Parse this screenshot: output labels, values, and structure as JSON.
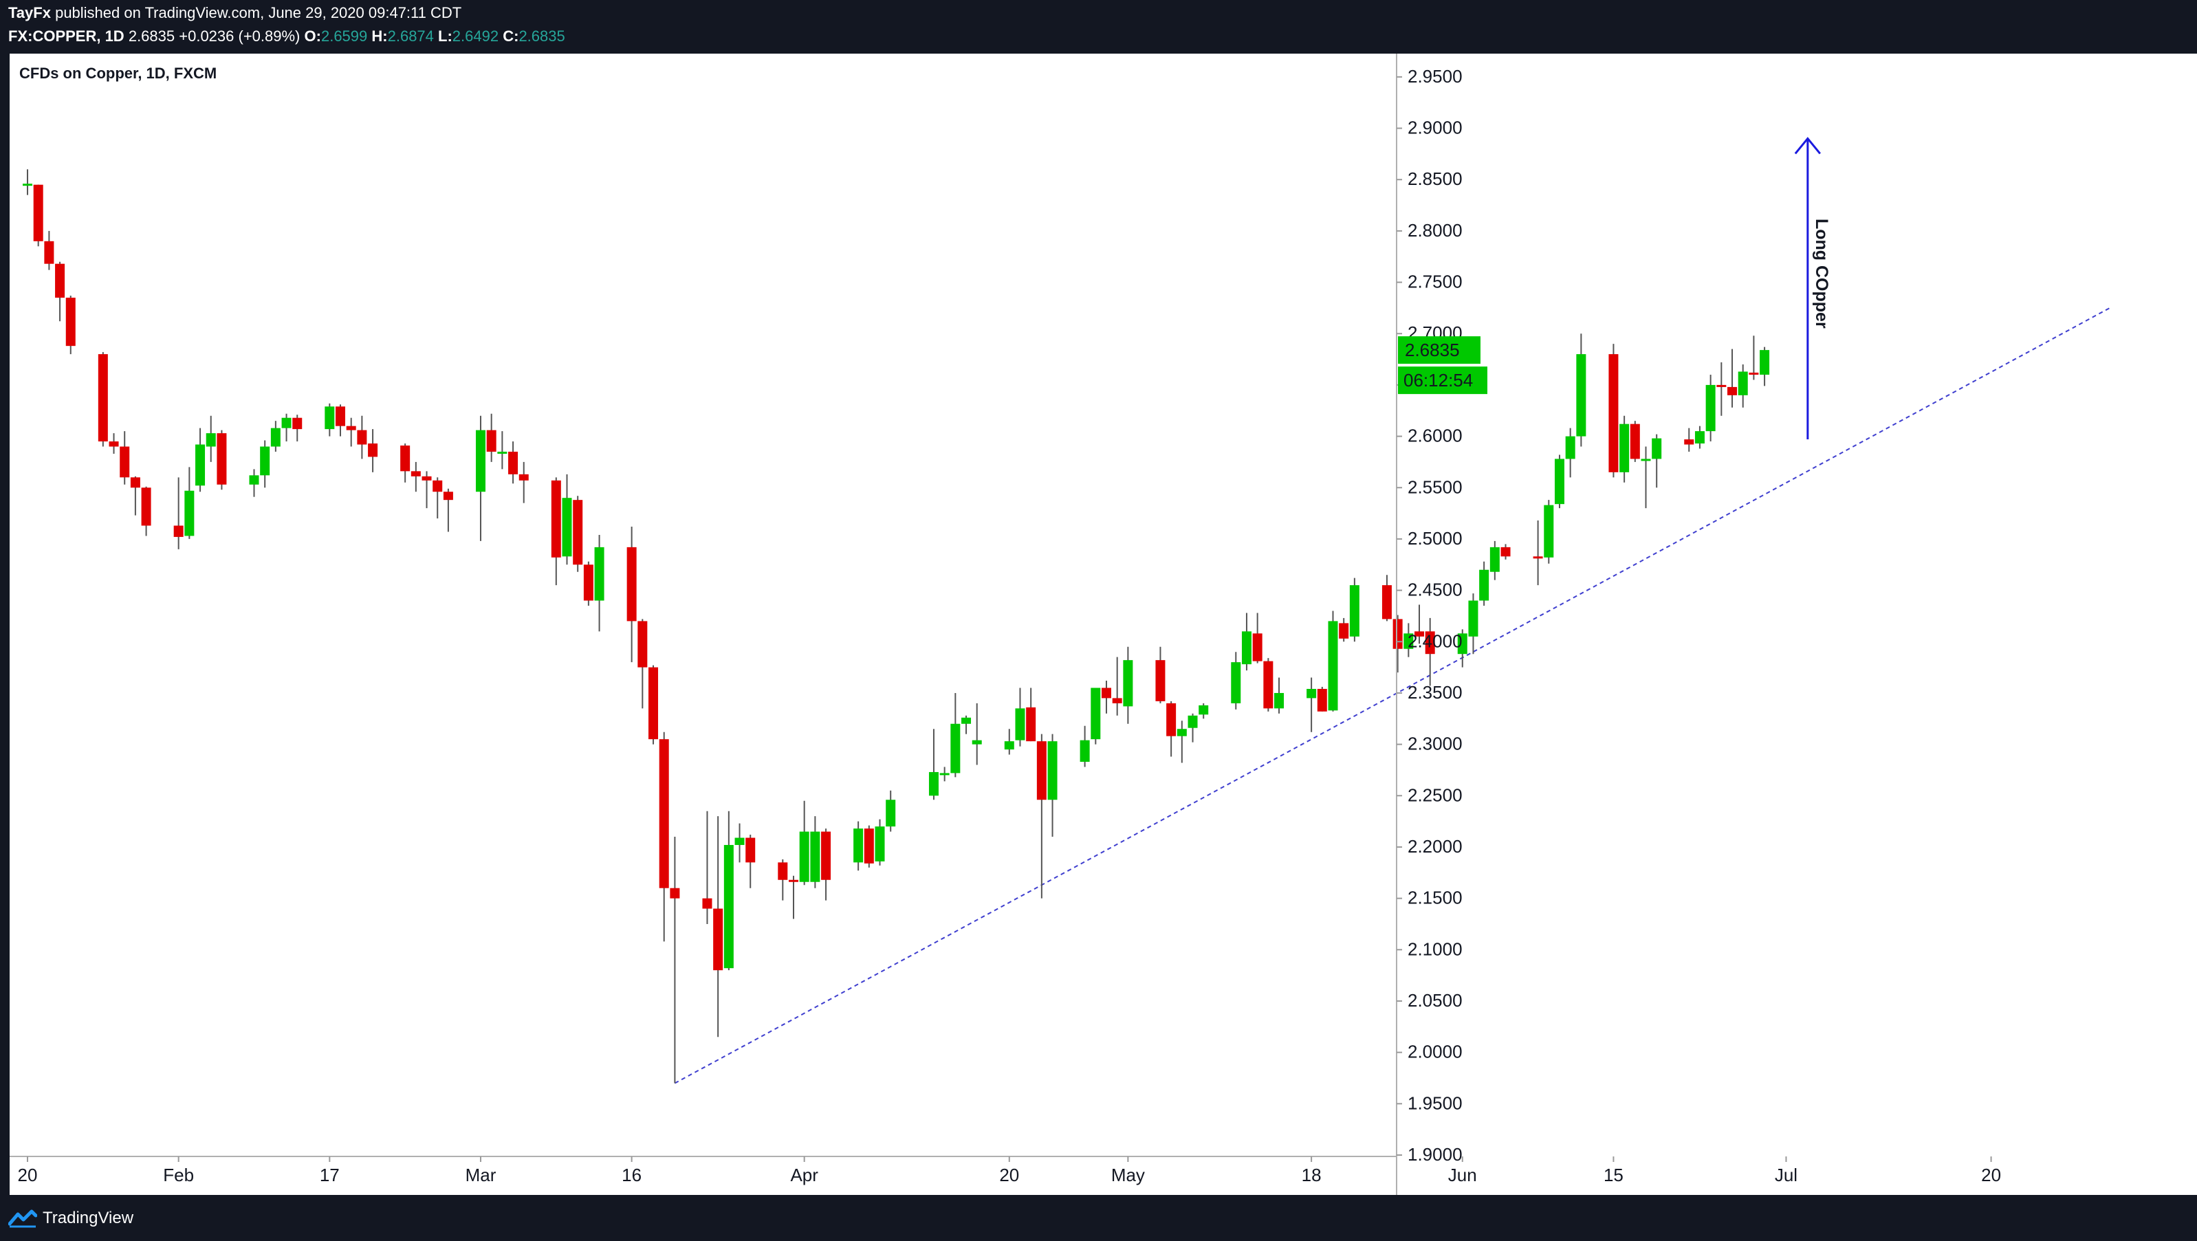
{
  "header": {
    "line1_user": "TayFx",
    "line1_rest": "published on TradingView.com, June 29, 2020 09:47:11 CDT",
    "symbol": "FX:COPPER, 1D",
    "last": "2.6835",
    "change": "+0.0236 (+0.89%)",
    "o_label": "O:",
    "o_value": "2.6599",
    "h_label": "H:",
    "h_value": "2.6874",
    "l_label": "L:",
    "l_value": "2.6492",
    "c_label": "C:",
    "c_value": "2.6835"
  },
  "footer": {
    "brand": "TradingView"
  },
  "colors": {
    "up": "#00c800",
    "down": "#e00000",
    "wick": "#555555",
    "trendline": "#3f3fcf",
    "arrow": "#1a1adf",
    "price_badge": "#00c800",
    "background": "#ffffff",
    "chrome": "#131722"
  },
  "chart_data": {
    "type": "candlestick",
    "title": "CFDs on Copper, 1D, FXCM",
    "ylim": [
      1.9,
      2.97
    ],
    "yticks": [
      "2.9500",
      "2.9000",
      "2.8500",
      "2.8000",
      "2.7500",
      "2.7000",
      "2.6500",
      "2.6000",
      "2.5500",
      "2.5000",
      "2.4500",
      "2.4000",
      "2.3500",
      "2.3000",
      "2.2500",
      "2.2000",
      "2.1500",
      "2.1000",
      "2.0500",
      "2.0000",
      "1.9500",
      "1.9000"
    ],
    "xticks": [
      {
        "label": "20",
        "date": "2020-01-20"
      },
      {
        "label": "Feb",
        "date": "2020-02-03"
      },
      {
        "label": "17",
        "date": "2020-02-17"
      },
      {
        "label": "Mar",
        "date": "2020-03-02"
      },
      {
        "label": "16",
        "date": "2020-03-16"
      },
      {
        "label": "Apr",
        "date": "2020-04-01"
      },
      {
        "label": "20",
        "date": "2020-04-20"
      },
      {
        "label": "May",
        "date": "2020-05-01"
      },
      {
        "label": "18",
        "date": "2020-05-18"
      },
      {
        "label": "Jun",
        "date": "2020-06-01"
      },
      {
        "label": "15",
        "date": "2020-06-15"
      },
      {
        "label": "Jul",
        "date": "2020-07-01"
      },
      {
        "label": "20",
        "date": "2020-07-20"
      }
    ],
    "candles": [
      {
        "date": "2020-01-20",
        "open": 2.846,
        "high": 2.86,
        "low": 2.835,
        "close": 2.846
      },
      {
        "date": "2020-01-21",
        "open": 2.845,
        "high": 2.845,
        "low": 2.785,
        "close": 2.79
      },
      {
        "date": "2020-01-22",
        "open": 2.79,
        "high": 2.8,
        "low": 2.762,
        "close": 2.768
      },
      {
        "date": "2020-01-23",
        "open": 2.768,
        "high": 2.77,
        "low": 2.712,
        "close": 2.735
      },
      {
        "date": "2020-01-24",
        "open": 2.735,
        "high": 2.737,
        "low": 2.68,
        "close": 2.688
      },
      {
        "date": "2020-01-27",
        "open": 2.68,
        "high": 2.682,
        "low": 2.59,
        "close": 2.595
      },
      {
        "date": "2020-01-28",
        "open": 2.595,
        "high": 2.603,
        "low": 2.583,
        "close": 2.59
      },
      {
        "date": "2020-01-29",
        "open": 2.59,
        "high": 2.605,
        "low": 2.553,
        "close": 2.56
      },
      {
        "date": "2020-01-30",
        "open": 2.56,
        "high": 2.561,
        "low": 2.523,
        "close": 2.55
      },
      {
        "date": "2020-01-31",
        "open": 2.55,
        "high": 2.551,
        "low": 2.503,
        "close": 2.513
      },
      {
        "date": "2020-02-03",
        "open": 2.513,
        "high": 2.56,
        "low": 2.49,
        "close": 2.502
      },
      {
        "date": "2020-02-04",
        "open": 2.503,
        "high": 2.57,
        "low": 2.5,
        "close": 2.547
      },
      {
        "date": "2020-02-05",
        "open": 2.552,
        "high": 2.608,
        "low": 2.546,
        "close": 2.592
      },
      {
        "date": "2020-02-06",
        "open": 2.59,
        "high": 2.62,
        "low": 2.575,
        "close": 2.603
      },
      {
        "date": "2020-02-07",
        "open": 2.603,
        "high": 2.606,
        "low": 2.548,
        "close": 2.553
      },
      {
        "date": "2020-02-10",
        "open": 2.553,
        "high": 2.568,
        "low": 2.541,
        "close": 2.562
      },
      {
        "date": "2020-02-11",
        "open": 2.562,
        "high": 2.596,
        "low": 2.55,
        "close": 2.59
      },
      {
        "date": "2020-02-12",
        "open": 2.59,
        "high": 2.615,
        "low": 2.585,
        "close": 2.608
      },
      {
        "date": "2020-02-13",
        "open": 2.608,
        "high": 2.622,
        "low": 2.595,
        "close": 2.618
      },
      {
        "date": "2020-02-14",
        "open": 2.618,
        "high": 2.621,
        "low": 2.595,
        "close": 2.607
      },
      {
        "date": "2020-02-17",
        "open": 2.607,
        "high": 2.632,
        "low": 2.6,
        "close": 2.629
      },
      {
        "date": "2020-02-18",
        "open": 2.629,
        "high": 2.631,
        "low": 2.6,
        "close": 2.61
      },
      {
        "date": "2020-02-19",
        "open": 2.61,
        "high": 2.618,
        "low": 2.59,
        "close": 2.606
      },
      {
        "date": "2020-02-20",
        "open": 2.606,
        "high": 2.62,
        "low": 2.578,
        "close": 2.592
      },
      {
        "date": "2020-02-21",
        "open": 2.593,
        "high": 2.607,
        "low": 2.565,
        "close": 2.58
      },
      {
        "date": "2020-02-24",
        "open": 2.591,
        "high": 2.593,
        "low": 2.555,
        "close": 2.566
      },
      {
        "date": "2020-02-25",
        "open": 2.566,
        "high": 2.575,
        "low": 2.546,
        "close": 2.561
      },
      {
        "date": "2020-02-26",
        "open": 2.561,
        "high": 2.566,
        "low": 2.53,
        "close": 2.557
      },
      {
        "date": "2020-02-27",
        "open": 2.557,
        "high": 2.56,
        "low": 2.52,
        "close": 2.546
      },
      {
        "date": "2020-02-28",
        "open": 2.546,
        "high": 2.549,
        "low": 2.507,
        "close": 2.538
      },
      {
        "date": "2020-03-02",
        "open": 2.546,
        "high": 2.62,
        "low": 2.498,
        "close": 2.606
      },
      {
        "date": "2020-03-03",
        "open": 2.606,
        "high": 2.622,
        "low": 2.575,
        "close": 2.585
      },
      {
        "date": "2020-03-04",
        "open": 2.585,
        "high": 2.605,
        "low": 2.568,
        "close": 2.585
      },
      {
        "date": "2020-03-05",
        "open": 2.585,
        "high": 2.595,
        "low": 2.554,
        "close": 2.563
      },
      {
        "date": "2020-03-06",
        "open": 2.563,
        "high": 2.575,
        "low": 2.535,
        "close": 2.557
      },
      {
        "date": "2020-03-09",
        "open": 2.557,
        "high": 2.56,
        "low": 2.455,
        "close": 2.482
      },
      {
        "date": "2020-03-10",
        "open": 2.483,
        "high": 2.563,
        "low": 2.475,
        "close": 2.54
      },
      {
        "date": "2020-03-11",
        "open": 2.538,
        "high": 2.542,
        "low": 2.468,
        "close": 2.475
      },
      {
        "date": "2020-03-12",
        "open": 2.475,
        "high": 2.478,
        "low": 2.435,
        "close": 2.44
      },
      {
        "date": "2020-03-13",
        "open": 2.44,
        "high": 2.504,
        "low": 2.41,
        "close": 2.492
      },
      {
        "date": "2020-03-16",
        "open": 2.492,
        "high": 2.512,
        "low": 2.38,
        "close": 2.42
      },
      {
        "date": "2020-03-17",
        "open": 2.42,
        "high": 2.422,
        "low": 2.335,
        "close": 2.375
      },
      {
        "date": "2020-03-18",
        "open": 2.375,
        "high": 2.377,
        "low": 2.3,
        "close": 2.305
      },
      {
        "date": "2020-03-19",
        "open": 2.305,
        "high": 2.312,
        "low": 2.108,
        "close": 2.16
      },
      {
        "date": "2020-03-20",
        "open": 2.16,
        "high": 2.21,
        "low": 1.97,
        "close": 2.15
      },
      {
        "date": "2020-03-23",
        "open": 2.15,
        "high": 2.235,
        "low": 2.125,
        "close": 2.14
      },
      {
        "date": "2020-03-24",
        "open": 2.14,
        "high": 2.23,
        "low": 2.015,
        "close": 2.08
      },
      {
        "date": "2020-03-25",
        "open": 2.082,
        "high": 2.235,
        "low": 2.08,
        "close": 2.202
      },
      {
        "date": "2020-03-26",
        "open": 2.202,
        "high": 2.223,
        "low": 2.185,
        "close": 2.209
      },
      {
        "date": "2020-03-27",
        "open": 2.209,
        "high": 2.212,
        "low": 2.16,
        "close": 2.185
      },
      {
        "date": "2020-03-30",
        "open": 2.185,
        "high": 2.188,
        "low": 2.148,
        "close": 2.168
      },
      {
        "date": "2020-03-31",
        "open": 2.168,
        "high": 2.172,
        "low": 2.13,
        "close": 2.166
      },
      {
        "date": "2020-04-01",
        "open": 2.166,
        "high": 2.245,
        "low": 2.163,
        "close": 2.215
      },
      {
        "date": "2020-04-02",
        "open": 2.166,
        "high": 2.23,
        "low": 2.16,
        "close": 2.215
      },
      {
        "date": "2020-04-03",
        "open": 2.215,
        "high": 2.218,
        "low": 2.148,
        "close": 2.168
      },
      {
        "date": "2020-04-06",
        "open": 2.185,
        "high": 2.225,
        "low": 2.177,
        "close": 2.218
      },
      {
        "date": "2020-04-07",
        "open": 2.218,
        "high": 2.221,
        "low": 2.18,
        "close": 2.184
      },
      {
        "date": "2020-04-08",
        "open": 2.186,
        "high": 2.227,
        "low": 2.182,
        "close": 2.22
      },
      {
        "date": "2020-04-09",
        "open": 2.22,
        "high": 2.255,
        "low": 2.215,
        "close": 2.246
      },
      {
        "date": "2020-04-13",
        "open": 2.25,
        "high": 2.315,
        "low": 2.246,
        "close": 2.273
      },
      {
        "date": "2020-04-14",
        "open": 2.27,
        "high": 2.278,
        "low": 2.264,
        "close": 2.272
      },
      {
        "date": "2020-04-15",
        "open": 2.272,
        "high": 2.35,
        "low": 2.268,
        "close": 2.32
      },
      {
        "date": "2020-04-16",
        "open": 2.32,
        "high": 2.328,
        "low": 2.31,
        "close": 2.326
      },
      {
        "date": "2020-04-17",
        "open": 2.3,
        "high": 2.34,
        "low": 2.28,
        "close": 2.304
      },
      {
        "date": "2020-04-20",
        "open": 2.295,
        "high": 2.315,
        "low": 2.29,
        "close": 2.303
      },
      {
        "date": "2020-04-21",
        "open": 2.304,
        "high": 2.355,
        "low": 2.298,
        "close": 2.335
      },
      {
        "date": "2020-04-22",
        "open": 2.336,
        "high": 2.355,
        "low": 2.303,
        "close": 2.303
      },
      {
        "date": "2020-04-23",
        "open": 2.303,
        "high": 2.31,
        "low": 2.15,
        "close": 2.246
      },
      {
        "date": "2020-04-24",
        "open": 2.246,
        "high": 2.31,
        "low": 2.21,
        "close": 2.303
      },
      {
        "date": "2020-04-27",
        "open": 2.283,
        "high": 2.318,
        "low": 2.278,
        "close": 2.304
      },
      {
        "date": "2020-04-28",
        "open": 2.305,
        "high": 2.355,
        "low": 2.3,
        "close": 2.355
      },
      {
        "date": "2020-04-29",
        "open": 2.355,
        "high": 2.362,
        "low": 2.33,
        "close": 2.345
      },
      {
        "date": "2020-04-30",
        "open": 2.345,
        "high": 2.385,
        "low": 2.328,
        "close": 2.34
      },
      {
        "date": "2020-05-01",
        "open": 2.337,
        "high": 2.395,
        "low": 2.32,
        "close": 2.382
      },
      {
        "date": "2020-05-04",
        "open": 2.382,
        "high": 2.395,
        "low": 2.34,
        "close": 2.342
      },
      {
        "date": "2020-05-05",
        "open": 2.34,
        "high": 2.342,
        "low": 2.288,
        "close": 2.308
      },
      {
        "date": "2020-05-06",
        "open": 2.308,
        "high": 2.323,
        "low": 2.282,
        "close": 2.315
      },
      {
        "date": "2020-05-07",
        "open": 2.316,
        "high": 2.33,
        "low": 2.302,
        "close": 2.328
      },
      {
        "date": "2020-05-08",
        "open": 2.329,
        "high": 2.34,
        "low": 2.325,
        "close": 2.338
      },
      {
        "date": "2020-05-11",
        "open": 2.34,
        "high": 2.39,
        "low": 2.334,
        "close": 2.38
      },
      {
        "date": "2020-05-12",
        "open": 2.378,
        "high": 2.428,
        "low": 2.372,
        "close": 2.41
      },
      {
        "date": "2020-05-13",
        "open": 2.408,
        "high": 2.428,
        "low": 2.379,
        "close": 2.381
      },
      {
        "date": "2020-05-14",
        "open": 2.381,
        "high": 2.384,
        "low": 2.332,
        "close": 2.335
      },
      {
        "date": "2020-05-15",
        "open": 2.335,
        "high": 2.365,
        "low": 2.33,
        "close": 2.35
      },
      {
        "date": "2020-05-18",
        "open": 2.345,
        "high": 2.365,
        "low": 2.312,
        "close": 2.354
      },
      {
        "date": "2020-05-19",
        "open": 2.354,
        "high": 2.356,
        "low": 2.332,
        "close": 2.332
      },
      {
        "date": "2020-05-20",
        "open": 2.333,
        "high": 2.43,
        "low": 2.332,
        "close": 2.42
      },
      {
        "date": "2020-05-21",
        "open": 2.418,
        "high": 2.423,
        "low": 2.4,
        "close": 2.403
      },
      {
        "date": "2020-05-22",
        "open": 2.405,
        "high": 2.462,
        "low": 2.4,
        "close": 2.455
      },
      {
        "date": "2020-05-25",
        "open": 2.455,
        "high": 2.465,
        "low": 2.42,
        "close": 2.422
      },
      {
        "date": "2020-05-26",
        "open": 2.422,
        "high": 2.426,
        "low": 2.37,
        "close": 2.393
      },
      {
        "date": "2020-05-27",
        "open": 2.393,
        "high": 2.418,
        "low": 2.385,
        "close": 2.408
      },
      {
        "date": "2020-05-28",
        "open": 2.41,
        "high": 2.436,
        "low": 2.398,
        "close": 2.405
      },
      {
        "date": "2020-05-29",
        "open": 2.41,
        "high": 2.423,
        "low": 2.357,
        "close": 2.388
      },
      {
        "date": "2020-06-01",
        "open": 2.388,
        "high": 2.412,
        "low": 2.375,
        "close": 2.408
      },
      {
        "date": "2020-06-02",
        "open": 2.405,
        "high": 2.447,
        "low": 2.388,
        "close": 2.44
      },
      {
        "date": "2020-06-03",
        "open": 2.44,
        "high": 2.478,
        "low": 2.435,
        "close": 2.47
      },
      {
        "date": "2020-06-04",
        "open": 2.468,
        "high": 2.498,
        "low": 2.46,
        "close": 2.492
      },
      {
        "date": "2020-06-05",
        "open": 2.492,
        "high": 2.495,
        "low": 2.48,
        "close": 2.483
      },
      {
        "date": "2020-06-08",
        "open": 2.483,
        "high": 2.518,
        "low": 2.455,
        "close": 2.482
      },
      {
        "date": "2020-06-09",
        "open": 2.482,
        "high": 2.538,
        "low": 2.476,
        "close": 2.533
      },
      {
        "date": "2020-06-10",
        "open": 2.534,
        "high": 2.582,
        "low": 2.53,
        "close": 2.578
      },
      {
        "date": "2020-06-11",
        "open": 2.578,
        "high": 2.608,
        "low": 2.56,
        "close": 2.6
      },
      {
        "date": "2020-06-12",
        "open": 2.6,
        "high": 2.7,
        "low": 2.59,
        "close": 2.68
      },
      {
        "date": "2020-06-15",
        "open": 2.68,
        "high": 2.69,
        "low": 2.56,
        "close": 2.565
      },
      {
        "date": "2020-06-16",
        "open": 2.565,
        "high": 2.62,
        "low": 2.555,
        "close": 2.612
      },
      {
        "date": "2020-06-17",
        "open": 2.612,
        "high": 2.615,
        "low": 2.575,
        "close": 2.578
      },
      {
        "date": "2020-06-18",
        "open": 2.578,
        "high": 2.59,
        "low": 2.53,
        "close": 2.578
      },
      {
        "date": "2020-06-19",
        "open": 2.578,
        "high": 2.602,
        "low": 2.55,
        "close": 2.598
      },
      {
        "date": "2020-06-22",
        "open": 2.597,
        "high": 2.608,
        "low": 2.585,
        "close": 2.592
      },
      {
        "date": "2020-06-23",
        "open": 2.593,
        "high": 2.61,
        "low": 2.588,
        "close": 2.605
      },
      {
        "date": "2020-06-24",
        "open": 2.605,
        "high": 2.66,
        "low": 2.595,
        "close": 2.65
      },
      {
        "date": "2020-06-25",
        "open": 2.65,
        "high": 2.672,
        "low": 2.62,
        "close": 2.648
      },
      {
        "date": "2020-06-26",
        "open": 2.648,
        "high": 2.685,
        "low": 2.628,
        "close": 2.64
      },
      {
        "date": "2020-06-27",
        "open": 2.64,
        "high": 2.67,
        "low": 2.628,
        "close": 2.663
      },
      {
        "date": "2020-06-28",
        "open": 2.662,
        "high": 2.698,
        "low": 2.655,
        "close": 2.66
      },
      {
        "date": "2020-06-29",
        "open": 2.66,
        "high": 2.687,
        "low": 2.649,
        "close": 2.684
      }
    ],
    "trendline": {
      "start": {
        "date": "2020-03-20",
        "price": 1.97
      },
      "end": {
        "date": "2020-07-31",
        "price": 2.725
      }
    },
    "annotation": {
      "text": "Long COpper",
      "arrow_from": {
        "date": "2020-07-03",
        "price": 2.597
      },
      "arrow_to": {
        "date": "2020-07-03",
        "price": 2.89
      }
    },
    "last_price_label": "2.6835",
    "countdown_label": "06:12:54"
  }
}
